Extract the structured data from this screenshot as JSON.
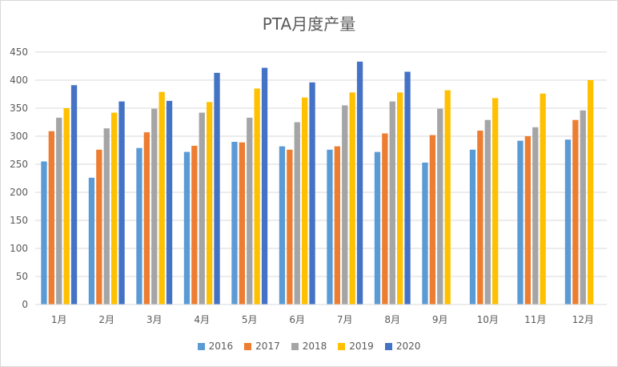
{
  "chart_data": {
    "type": "bar",
    "title": "PTA月度产量",
    "xlabel": "",
    "ylabel": "",
    "ylim": [
      0,
      450
    ],
    "yticks": [
      0,
      50,
      100,
      150,
      200,
      250,
      300,
      350,
      400,
      450
    ],
    "grid": true,
    "legend_position": "bottom",
    "categories": [
      "1月",
      "2月",
      "3月",
      "4月",
      "5月",
      "6月",
      "7月",
      "8月",
      "9月",
      "10月",
      "11月",
      "12月"
    ],
    "series": [
      {
        "name": "2016",
        "color": "#5b9bd5",
        "values": [
          255,
          226,
          279,
          272,
          290,
          282,
          276,
          272,
          253,
          276,
          292,
          294
        ]
      },
      {
        "name": "2017",
        "color": "#ed7d31",
        "values": [
          309,
          276,
          307,
          283,
          289,
          276,
          282,
          305,
          302,
          310,
          300,
          329
        ]
      },
      {
        "name": "2018",
        "color": "#a5a5a5",
        "values": [
          333,
          314,
          349,
          342,
          333,
          325,
          355,
          362,
          349,
          329,
          316,
          346
        ]
      },
      {
        "name": "2019",
        "color": "#ffc000",
        "values": [
          350,
          342,
          379,
          361,
          385,
          369,
          378,
          378,
          382,
          368,
          376,
          400
        ]
      },
      {
        "name": "2020",
        "color": "#4472c4",
        "values": [
          391,
          362,
          363,
          413,
          422,
          396,
          433,
          415,
          null,
          null,
          null,
          null
        ]
      }
    ]
  }
}
